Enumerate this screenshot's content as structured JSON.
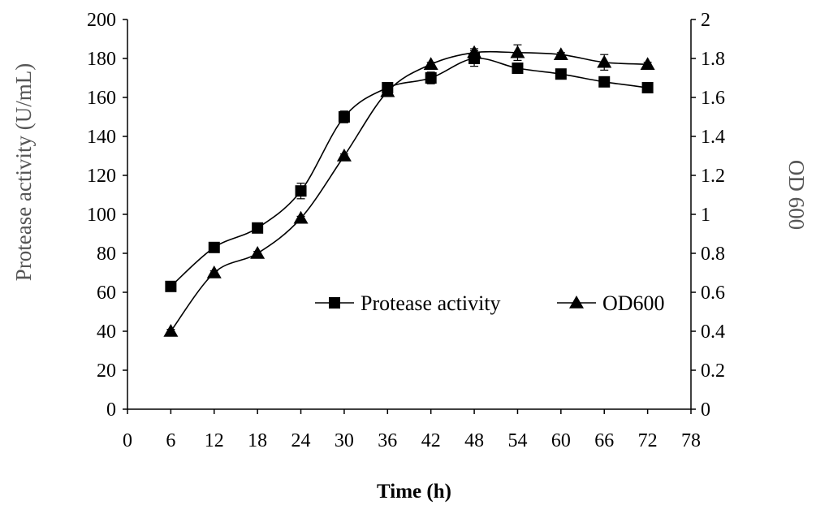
{
  "chart_data": {
    "type": "line",
    "title": "",
    "xlabel": "Time (h)",
    "ylabel": "Protease activity (U/mL)",
    "y2label": "OD 600",
    "xlim": [
      0,
      78
    ],
    "ylim": [
      0,
      200
    ],
    "y2lim": [
      0,
      2
    ],
    "x_ticks": [
      "0",
      "6",
      "12",
      "18",
      "24",
      "30",
      "36",
      "42",
      "48",
      "54",
      "60",
      "66",
      "72",
      "78"
    ],
    "y_ticks": [
      "0",
      "20",
      "40",
      "60",
      "80",
      "100",
      "120",
      "140",
      "160",
      "180",
      "200"
    ],
    "y2_ticks": [
      "0",
      "0.2",
      "0.4",
      "0.6",
      "0.8",
      "1",
      "1.2",
      "1.4",
      "1.6",
      "1.8",
      "2"
    ],
    "grid": false,
    "legend_position": "center-right",
    "x": [
      6,
      12,
      18,
      24,
      30,
      36,
      42,
      48,
      54,
      60,
      66,
      72
    ],
    "series": [
      {
        "name": "Protease activity",
        "axis": "left",
        "marker": "square",
        "values": [
          63,
          83,
          93,
          112,
          150,
          165,
          170,
          180,
          175,
          172,
          168,
          165
        ],
        "errors": [
          1,
          1,
          1,
          4,
          3,
          2,
          3,
          4,
          1,
          1,
          1,
          1
        ]
      },
      {
        "name": "OD600",
        "axis": "right",
        "marker": "triangle",
        "values": [
          0.4,
          0.7,
          0.8,
          0.98,
          1.3,
          1.63,
          1.77,
          1.83,
          1.83,
          1.82,
          1.78,
          1.77
        ],
        "errors": [
          0.01,
          0.01,
          0.01,
          0.01,
          0.01,
          0.02,
          0.01,
          0.02,
          0.04,
          0.01,
          0.04,
          0.01
        ]
      }
    ]
  }
}
